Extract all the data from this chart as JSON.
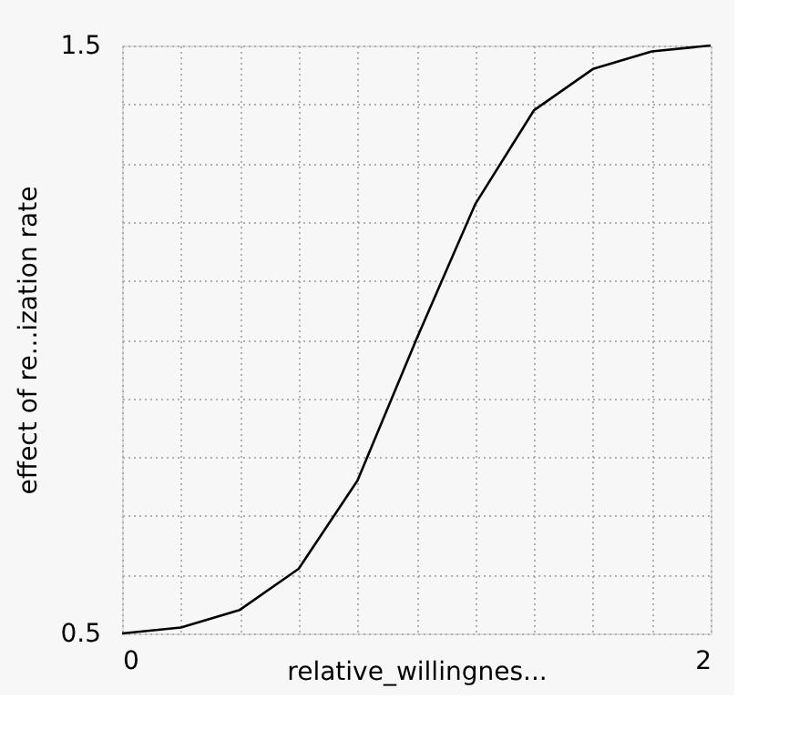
{
  "chart_data": {
    "type": "line",
    "xlabel": "relative_willingnes...",
    "ylabel": "effect of re...ization rate",
    "x": [
      0,
      0.2,
      0.4,
      0.6,
      0.8,
      1.0,
      1.2,
      1.4,
      1.6,
      1.8,
      2.0
    ],
    "series": [
      {
        "color": "#000000",
        "values": [
          0.5,
          0.51,
          0.54,
          0.61,
          0.76,
          1.0,
          1.23,
          1.39,
          1.46,
          1.49,
          1.5
        ]
      }
    ],
    "xlim": [
      0,
      2
    ],
    "ylim": [
      0.5,
      1.5
    ],
    "xticks": [
      0,
      {
        "value": 0.2,
        "label": null
      },
      {
        "value": 0.4,
        "label": null
      },
      {
        "value": 0.6,
        "label": null
      },
      {
        "value": 0.8,
        "label": null
      },
      {
        "value": 1.0,
        "label": null
      },
      {
        "value": 1.2,
        "label": null
      },
      {
        "value": 1.4,
        "label": null
      },
      {
        "value": 1.6,
        "label": null
      },
      {
        "value": 1.8,
        "label": null
      },
      2
    ],
    "yticks": [
      0.5,
      {
        "value": 0.6,
        "label": null
      },
      {
        "value": 0.7,
        "label": null
      },
      {
        "value": 0.8,
        "label": null
      },
      {
        "value": 0.9,
        "label": null
      },
      {
        "value": 1.0,
        "label": null
      },
      {
        "value": 1.1,
        "label": null
      },
      {
        "value": 1.2,
        "label": null
      },
      {
        "value": 1.3,
        "label": null
      },
      {
        "value": 1.4,
        "label": null
      },
      1.5
    ],
    "grid": true,
    "marker": "none",
    "line_style": "solid"
  }
}
